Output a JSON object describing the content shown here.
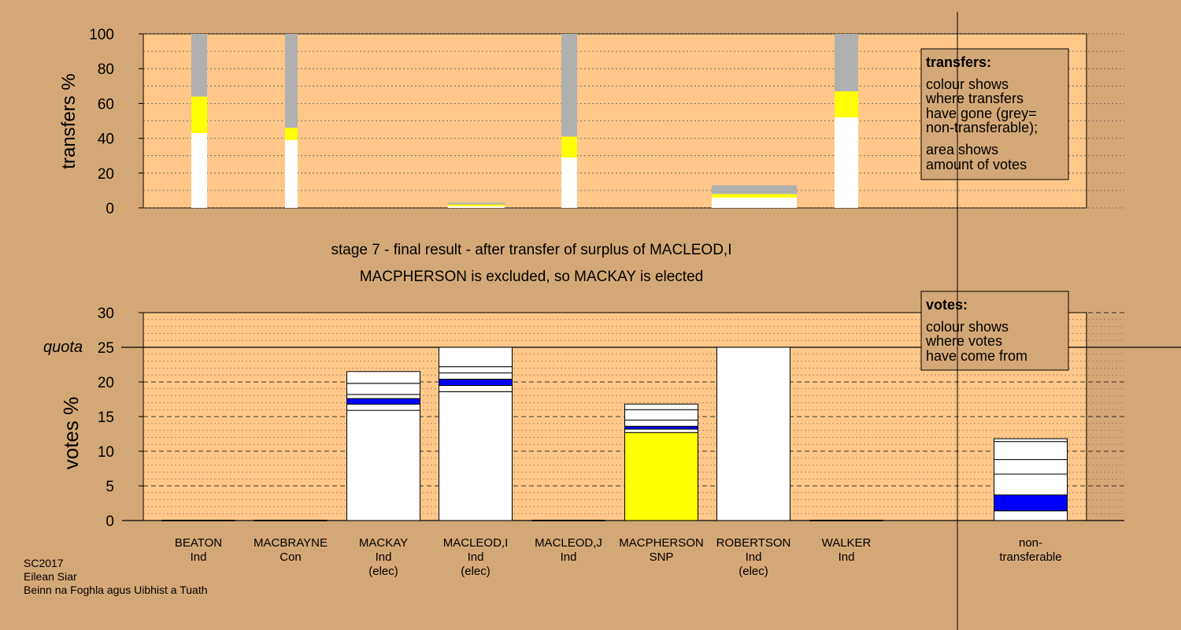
{
  "chart_data": [
    {
      "type": "bar",
      "name": "transfers",
      "ylabel": "transfers %",
      "ylim": [
        0,
        100
      ],
      "yticks": [
        0,
        20,
        40,
        60,
        80,
        100
      ],
      "categories": [
        "BEATON",
        "MACBRAYNE",
        "MACLEOD,J",
        "MACPHERSON",
        "WALKER"
      ],
      "segments_note": "stack order bottom to top: white, yellow, grey",
      "series": [
        {
          "color": "#ffffff",
          "values": [
            43,
            39,
            1,
            29,
            52
          ]
        },
        {
          "color": "#ffff00",
          "values": [
            21,
            7,
            1,
            12,
            15
          ]
        },
        {
          "color": "#b0b0b0",
          "values": [
            36,
            54,
            1,
            59,
            33
          ]
        }
      ],
      "legend": {
        "title": "transfers:",
        "lines": [
          "colour shows",
          "where transfers",
          "have gone (grey=",
          "non-transferable);",
          "area shows",
          "amount of votes"
        ]
      }
    },
    {
      "type": "bar",
      "name": "votes",
      "ylabel": "votes %",
      "ylim": [
        0,
        30
      ],
      "yticks": [
        0,
        5,
        10,
        15,
        20,
        25,
        30
      ],
      "quota_label": "quota",
      "quota": 25,
      "categories": [
        {
          "name": "BEATON",
          "party": "Ind",
          "elected": ""
        },
        {
          "name": "MACBRAYNE",
          "party": "Con",
          "elected": ""
        },
        {
          "name": "MACKAY",
          "party": "Ind",
          "elected": "(elec)"
        },
        {
          "name": "MACLEOD,I",
          "party": "Ind",
          "elected": "(elec)"
        },
        {
          "name": "MACLEOD,J",
          "party": "Ind",
          "elected": ""
        },
        {
          "name": "MACPHERSON",
          "party": "SNP",
          "elected": ""
        },
        {
          "name": "ROBERTSON",
          "party": "Ind",
          "elected": "(elec)"
        },
        {
          "name": "WALKER",
          "party": "Ind",
          "elected": ""
        },
        {
          "name": "non-",
          "party": "transferable",
          "elected": ""
        }
      ],
      "stacks": [
        [],
        [],
        [
          {
            "v": 15.9,
            "c": "#ffffff"
          },
          {
            "v": 0.9,
            "c": "#ffffff"
          },
          {
            "v": 0.8,
            "c": "#0000ff"
          },
          {
            "v": 0.6,
            "c": "#ffffff"
          },
          {
            "v": 1.6,
            "c": "#ffffff"
          },
          {
            "v": 1.7,
            "c": "#ffffff"
          }
        ],
        [
          {
            "v": 18.6,
            "c": "#ffffff"
          },
          {
            "v": 0.9,
            "c": "#ffffff"
          },
          {
            "v": 0.9,
            "c": "#0000ff"
          },
          {
            "v": 0.9,
            "c": "#ffffff"
          },
          {
            "v": 0.9,
            "c": "#ffffff"
          },
          {
            "v": 2.8,
            "c": "#ffffff"
          }
        ],
        [],
        [
          {
            "v": 12.7,
            "c": "#ffff00"
          },
          {
            "v": 0.5,
            "c": "#ffffff"
          },
          {
            "v": 0.4,
            "c": "#0000ff"
          },
          {
            "v": 0.9,
            "c": "#ffffff"
          },
          {
            "v": 1.5,
            "c": "#ffffff"
          },
          {
            "v": 0.8,
            "c": "#ffffff"
          }
        ],
        [
          {
            "v": 25.0,
            "c": "#ffffff"
          }
        ],
        [],
        [
          {
            "v": 1.4,
            "c": "#ffffff"
          },
          {
            "v": 2.3,
            "c": "#0000ff"
          },
          {
            "v": 3.0,
            "c": "#ffffff"
          },
          {
            "v": 2.1,
            "c": "#ffffff"
          },
          {
            "v": 2.6,
            "c": "#ffffff"
          },
          {
            "v": 0.4,
            "c": "#ffffff"
          }
        ]
      ],
      "legend": {
        "title": "votes:",
        "lines": [
          "colour shows",
          "where votes",
          "have come from"
        ]
      }
    }
  ],
  "stage_line1": "stage 7 - final result - after transfer of surplus of MACLEOD,I",
  "stage_line2": "MACPHERSON is excluded, so MACKAY is elected",
  "footer": [
    "SC2017",
    "Eilean Siar",
    "Beinn na Foghla agus Uibhist a Tuath"
  ],
  "colors": {
    "background": "#d4a876",
    "plot_fill": "#ffc88a",
    "grey": "#b0b0b0",
    "yellow": "#ffff00",
    "blue": "#0000ff"
  }
}
